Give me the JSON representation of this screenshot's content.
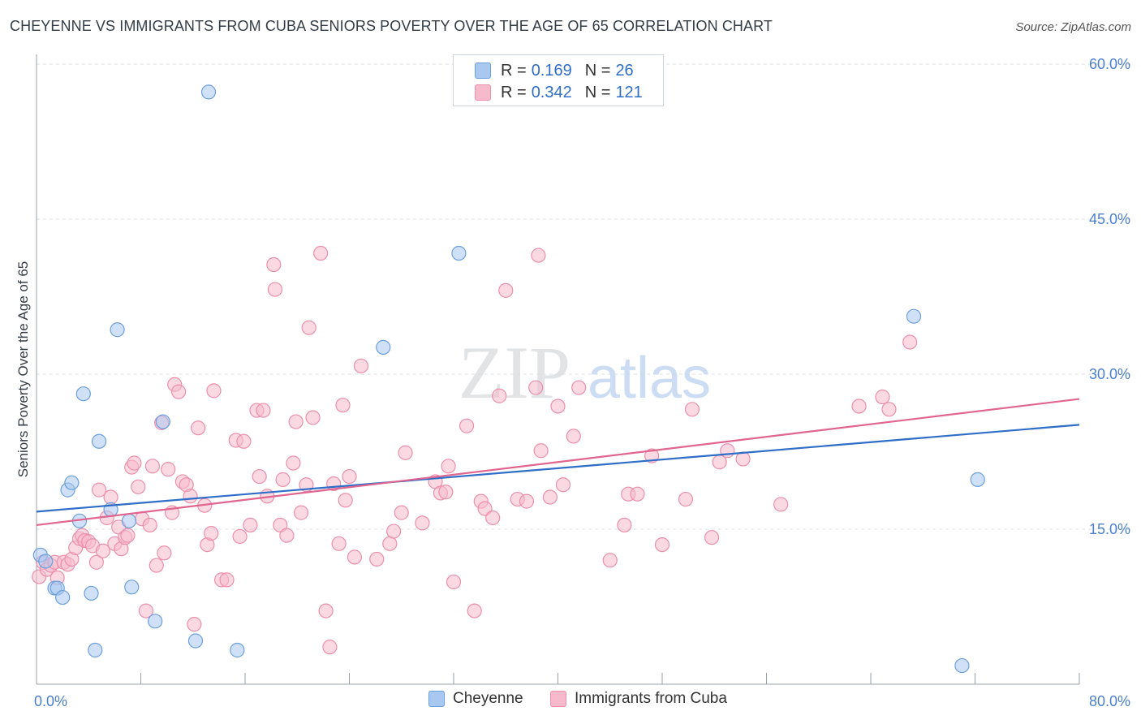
{
  "title": "CHEYENNE VS IMMIGRANTS FROM CUBA SENIORS POVERTY OVER THE AGE OF 65 CORRELATION CHART",
  "source": "Source: ZipAtlas.com",
  "watermark": {
    "zip": "ZIP",
    "atlas": "atlas"
  },
  "legend": {
    "rows": [
      {
        "r_label": "R =",
        "r_value": "0.169",
        "n_label": "N =",
        "n_value": "26"
      },
      {
        "r_label": "R =",
        "r_value": "0.342",
        "n_label": "N =",
        "n_value": "121"
      }
    ]
  },
  "colors": {
    "cheyenne_fill": "#a9c8f0",
    "cheyenne_stroke": "#6b9fdf",
    "cheyenne_line": "#2f6ec8",
    "cuba_fill": "#f7b9cc",
    "cuba_stroke": "#ec8fac",
    "cuba_line": "#e0658f",
    "grid": "#dcdfe3",
    "axis_text": "#4a7fcf"
  },
  "chart_data": {
    "type": "scatter",
    "title": "CHEYENNE VS IMMIGRANTS FROM CUBA SENIORS POVERTY OVER THE AGE OF 65 CORRELATION CHART",
    "xlabel": "",
    "ylabel": "Seniors Poverty Over the Age of 65",
    "xlim": [
      0,
      80
    ],
    "ylim": [
      0,
      62
    ],
    "x_tick_labels": [
      "0.0%",
      "80.0%"
    ],
    "y_ticks": [
      15,
      30,
      45,
      60
    ],
    "y_tick_labels": [
      "15.0%",
      "30.0%",
      "45.0%",
      "60.0%"
    ],
    "legend_position": "top-center",
    "series": [
      {
        "name": "Cheyenne",
        "r": 0.169,
        "n": 26,
        "trend": {
          "x": [
            0,
            80
          ],
          "y": [
            16.7,
            25.1
          ]
        },
        "points": [
          [
            0.3,
            12.5
          ],
          [
            0.7,
            11.9
          ],
          [
            1.4,
            9.3
          ],
          [
            1.6,
            9.3
          ],
          [
            2.0,
            8.4
          ],
          [
            2.4,
            18.8
          ],
          [
            2.7,
            19.5
          ],
          [
            3.3,
            15.8
          ],
          [
            3.6,
            28.1
          ],
          [
            4.2,
            8.8
          ],
          [
            4.5,
            3.3
          ],
          [
            4.8,
            23.5
          ],
          [
            5.7,
            16.9
          ],
          [
            6.2,
            34.3
          ],
          [
            7.1,
            15.8
          ],
          [
            7.3,
            9.4
          ],
          [
            9.1,
            6.1
          ],
          [
            9.7,
            25.4
          ],
          [
            12.2,
            4.2
          ],
          [
            13.2,
            57.3
          ],
          [
            15.4,
            3.3
          ],
          [
            26.6,
            32.6
          ],
          [
            32.4,
            41.7
          ],
          [
            67.3,
            35.6
          ],
          [
            72.2,
            19.8
          ],
          [
            71.0,
            1.8
          ]
        ]
      },
      {
        "name": "Immigrants from Cuba",
        "r": 0.342,
        "n": 121,
        "trend": {
          "x": [
            0,
            80
          ],
          "y": [
            15.4,
            27.6
          ]
        },
        "points": [
          [
            0.2,
            10.4
          ],
          [
            0.5,
            11.8
          ],
          [
            0.8,
            11.1
          ],
          [
            1.1,
            11.5
          ],
          [
            1.4,
            11.8
          ],
          [
            1.6,
            10.3
          ],
          [
            2.1,
            11.8
          ],
          [
            2.4,
            11.6
          ],
          [
            2.7,
            12.1
          ],
          [
            3.0,
            13.2
          ],
          [
            3.3,
            14.1
          ],
          [
            3.5,
            14.4
          ],
          [
            3.7,
            13.9
          ],
          [
            4.0,
            13.8
          ],
          [
            4.3,
            13.4
          ],
          [
            4.6,
            11.8
          ],
          [
            4.8,
            18.8
          ],
          [
            5.1,
            12.9
          ],
          [
            5.4,
            16.1
          ],
          [
            5.7,
            18.1
          ],
          [
            6.0,
            13.6
          ],
          [
            6.3,
            15.2
          ],
          [
            6.5,
            13.1
          ],
          [
            6.8,
            14.2
          ],
          [
            7.0,
            14.4
          ],
          [
            7.3,
            21.0
          ],
          [
            7.5,
            21.4
          ],
          [
            7.8,
            19.1
          ],
          [
            8.1,
            16.0
          ],
          [
            8.4,
            7.1
          ],
          [
            8.7,
            15.4
          ],
          [
            8.9,
            21.1
          ],
          [
            9.2,
            11.5
          ],
          [
            9.6,
            25.3
          ],
          [
            9.8,
            12.7
          ],
          [
            10.1,
            20.8
          ],
          [
            10.4,
            16.6
          ],
          [
            10.6,
            29.0
          ],
          [
            10.9,
            28.3
          ],
          [
            11.2,
            19.6
          ],
          [
            11.5,
            19.3
          ],
          [
            11.8,
            18.2
          ],
          [
            12.1,
            5.8
          ],
          [
            12.4,
            24.8
          ],
          [
            12.9,
            17.3
          ],
          [
            13.1,
            13.5
          ],
          [
            13.4,
            14.6
          ],
          [
            13.6,
            28.4
          ],
          [
            14.2,
            10.1
          ],
          [
            14.6,
            10.1
          ],
          [
            15.3,
            23.6
          ],
          [
            15.6,
            14.3
          ],
          [
            15.9,
            23.5
          ],
          [
            16.4,
            15.4
          ],
          [
            16.9,
            26.5
          ],
          [
            17.1,
            20.1
          ],
          [
            17.4,
            26.5
          ],
          [
            17.7,
            18.2
          ],
          [
            18.2,
            40.6
          ],
          [
            18.3,
            38.2
          ],
          [
            18.7,
            15.4
          ],
          [
            18.9,
            19.8
          ],
          [
            19.2,
            14.4
          ],
          [
            19.7,
            21.4
          ],
          [
            19.9,
            25.4
          ],
          [
            20.3,
            16.6
          ],
          [
            20.7,
            19.3
          ],
          [
            20.9,
            34.5
          ],
          [
            21.2,
            25.8
          ],
          [
            21.8,
            41.7
          ],
          [
            22.2,
            7.1
          ],
          [
            22.5,
            3.6
          ],
          [
            22.8,
            19.4
          ],
          [
            23.2,
            13.6
          ],
          [
            23.5,
            27.0
          ],
          [
            23.7,
            17.8
          ],
          [
            24.0,
            20.1
          ],
          [
            24.4,
            12.3
          ],
          [
            24.9,
            30.8
          ],
          [
            26.1,
            12.1
          ],
          [
            27.1,
            13.6
          ],
          [
            27.4,
            14.8
          ],
          [
            28.0,
            16.6
          ],
          [
            28.3,
            22.4
          ],
          [
            29.6,
            15.6
          ],
          [
            30.6,
            19.6
          ],
          [
            31.0,
            18.5
          ],
          [
            31.4,
            18.6
          ],
          [
            31.6,
            21.1
          ],
          [
            32.0,
            9.9
          ],
          [
            33.0,
            25.0
          ],
          [
            33.6,
            7.1
          ],
          [
            34.1,
            17.7
          ],
          [
            34.4,
            17.0
          ],
          [
            35.0,
            16.1
          ],
          [
            35.5,
            27.9
          ],
          [
            36.0,
            38.1
          ],
          [
            36.9,
            17.9
          ],
          [
            37.6,
            17.7
          ],
          [
            38.3,
            28.7
          ],
          [
            38.5,
            41.5
          ],
          [
            38.7,
            22.6
          ],
          [
            39.4,
            18.1
          ],
          [
            40.0,
            26.9
          ],
          [
            40.4,
            19.3
          ],
          [
            41.2,
            24.0
          ],
          [
            41.6,
            28.7
          ],
          [
            44.0,
            12.0
          ],
          [
            45.1,
            15.4
          ],
          [
            45.4,
            18.4
          ],
          [
            46.1,
            18.4
          ],
          [
            47.2,
            22.1
          ],
          [
            48.0,
            13.5
          ],
          [
            49.8,
            17.9
          ],
          [
            50.3,
            26.6
          ],
          [
            51.8,
            14.2
          ],
          [
            52.4,
            21.5
          ],
          [
            53.0,
            22.6
          ],
          [
            54.2,
            21.8
          ],
          [
            57.1,
            17.4
          ],
          [
            63.1,
            26.9
          ],
          [
            64.9,
            27.8
          ],
          [
            65.4,
            26.6
          ],
          [
            67.0,
            33.1
          ]
        ]
      }
    ]
  },
  "bottom_legend": [
    {
      "label": "Cheyenne"
    },
    {
      "label": "Immigrants from Cuba"
    }
  ]
}
